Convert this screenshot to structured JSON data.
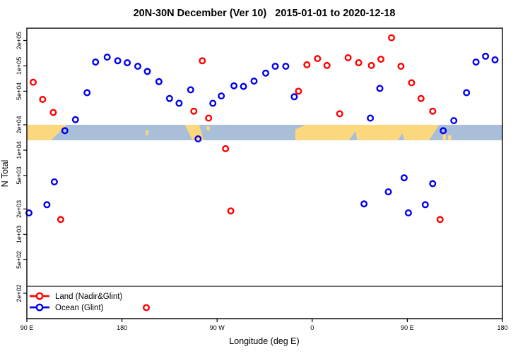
{
  "chart_data": {
    "type": "scatter",
    "title": "20N-30N December (Ver 10)   2015-01-01 to 2020-12-18",
    "xlabel": "Longitude (deg E)",
    "ylabel": "N Total",
    "x_axis": {
      "range": [
        0,
        450
      ],
      "note": "unwrapped longitude, degrees east of 90E",
      "ticks": [
        {
          "t": 0,
          "label": "90 E"
        },
        {
          "t": 90,
          "label": "180"
        },
        {
          "t": 180,
          "label": "90 W"
        },
        {
          "t": 270,
          "label": "0"
        },
        {
          "t": 360,
          "label": "90 E"
        },
        {
          "t": 450,
          "label": "180"
        }
      ]
    },
    "y_axis": {
      "scale": "log",
      "range": [
        100,
        280000
      ],
      "ticks": [
        {
          "v": 200000,
          "label": "2e+05"
        },
        {
          "v": 100000,
          "label": "1e+05"
        },
        {
          "v": 50000,
          "label": "5e+04"
        },
        {
          "v": 20000,
          "label": "2e+04"
        },
        {
          "v": 10000,
          "label": "1e+04"
        },
        {
          "v": 5000,
          "label": "5e+03"
        },
        {
          "v": 2000,
          "label": "2e+03"
        },
        {
          "v": 1000,
          "label": "1e+03"
        },
        {
          "v": 500,
          "label": "5e+02"
        },
        {
          "v": 200,
          "label": "2e+02"
        }
      ]
    },
    "hline_value": 242,
    "map_band": {
      "v_top": 20000,
      "v_bottom": 13100,
      "ocean_color": "#a9bed9",
      "land_color": "#fbd77e",
      "land_polygons": [
        [
          [
            0,
            0
          ],
          [
            38,
            0
          ],
          [
            23,
            1
          ],
          [
            0,
            1
          ]
        ],
        [
          [
            112.5,
            0.35
          ],
          [
            115,
            0.35
          ],
          [
            115,
            0.68
          ],
          [
            112.5,
            0.68
          ]
        ],
        [
          [
            149.5,
            0
          ],
          [
            163,
            0
          ],
          [
            167.5,
            1
          ],
          [
            156.5,
            1
          ]
        ],
        [
          [
            170,
            0.1
          ],
          [
            173,
            0.1
          ],
          [
            173,
            0.35
          ],
          [
            170,
            0.35
          ]
        ],
        [
          [
            264,
            0
          ],
          [
            390,
            0
          ],
          [
            380.5,
            1
          ],
          [
            254,
            1
          ],
          [
            254,
            0.3
          ]
        ],
        [
          [
            393.5,
            0.6
          ],
          [
            396.5,
            0.6
          ],
          [
            396.5,
            1
          ],
          [
            393.5,
            1
          ]
        ],
        [
          [
            398.5,
            0.68
          ],
          [
            401.5,
            0.68
          ],
          [
            401.5,
            1
          ],
          [
            398.5,
            1
          ]
        ]
      ],
      "ocean_notches": [
        [
          [
            305,
            1
          ],
          [
            312.5,
            1
          ],
          [
            311,
            0.4
          ]
        ],
        [
          [
            351,
            1
          ],
          [
            357,
            1
          ],
          [
            355.5,
            0.55
          ]
        ]
      ]
    },
    "series": [
      {
        "name": "Land (Nadir&Glint)",
        "color": "#ff0000",
        "marker": "open-circle",
        "points": [
          [
            6,
            64000
          ],
          [
            15,
            40000
          ],
          [
            25,
            28000
          ],
          [
            32,
            1500
          ],
          [
            113,
            135
          ],
          [
            158,
            29000
          ],
          [
            166,
            115000
          ],
          [
            172,
            24000
          ],
          [
            188,
            10400
          ],
          [
            193,
            1900
          ],
          [
            257,
            50000
          ],
          [
            265,
            103000
          ],
          [
            275,
            122000
          ],
          [
            284,
            101000
          ],
          [
            296,
            27000
          ],
          [
            304,
            125000
          ],
          [
            314,
            109000
          ],
          [
            326,
            101000
          ],
          [
            335,
            120000
          ],
          [
            345,
            216000
          ],
          [
            354,
            99000
          ],
          [
            364,
            63000
          ],
          [
            373,
            41000
          ],
          [
            384,
            29000
          ],
          [
            391,
            1500
          ]
        ]
      },
      {
        "name": "Ocean (Glint)",
        "color": "#0000ee",
        "marker": "open-circle",
        "points": [
          [
            2,
            1800
          ],
          [
            19,
            2250
          ],
          [
            26,
            4200
          ],
          [
            36,
            17000
          ],
          [
            46,
            23000
          ],
          [
            57,
            48000
          ],
          [
            65,
            111000
          ],
          [
            76,
            127000
          ],
          [
            86,
            115000
          ],
          [
            95,
            109000
          ],
          [
            105,
            99000
          ],
          [
            114,
            86000
          ],
          [
            125,
            65000
          ],
          [
            135,
            41000
          ],
          [
            144,
            36000
          ],
          [
            155,
            52000
          ],
          [
            162,
            13600
          ],
          [
            176,
            36000
          ],
          [
            184,
            44000
          ],
          [
            196,
            58000
          ],
          [
            205,
            57000
          ],
          [
            215,
            66000
          ],
          [
            226,
            82000
          ],
          [
            235,
            99000
          ],
          [
            245,
            99000
          ],
          [
            253,
            43000
          ],
          [
            319,
            2300
          ],
          [
            325,
            24000
          ],
          [
            334,
            54000
          ],
          [
            342,
            3200
          ],
          [
            357,
            4700
          ],
          [
            361,
            1800
          ],
          [
            377,
            2250
          ],
          [
            384,
            4000
          ],
          [
            394,
            17000
          ],
          [
            404,
            22400
          ],
          [
            416,
            48000
          ],
          [
            425,
            111000
          ],
          [
            434,
            130000
          ],
          [
            443,
            118000
          ]
        ]
      }
    ],
    "legend": {
      "position": "bottom-left",
      "entries": [
        "Land (Nadir&Glint)",
        "Ocean (Glint)"
      ]
    }
  }
}
